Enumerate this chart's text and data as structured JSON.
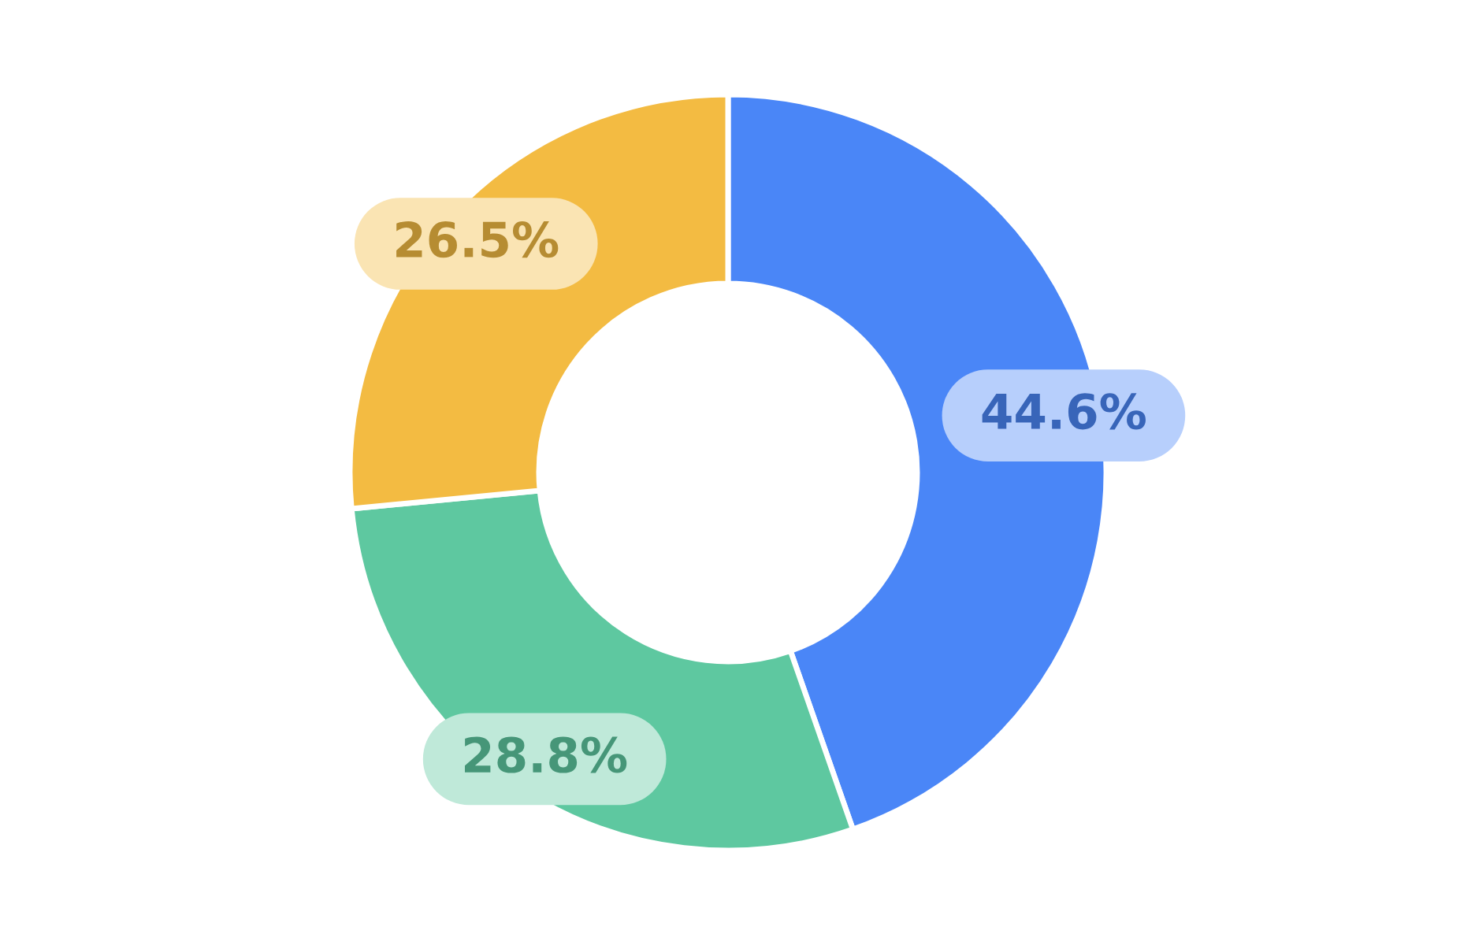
{
  "chart_data": {
    "type": "donut",
    "categories": [
      null,
      null,
      null
    ],
    "values": [
      44.6,
      28.8,
      26.5
    ],
    "colors": [
      "#4a86f7",
      "#5ec8a0",
      "#f3bb42"
    ],
    "value_labels": [
      "44.6%",
      "28.8%",
      "26.5%"
    ],
    "legend": false
  }
}
